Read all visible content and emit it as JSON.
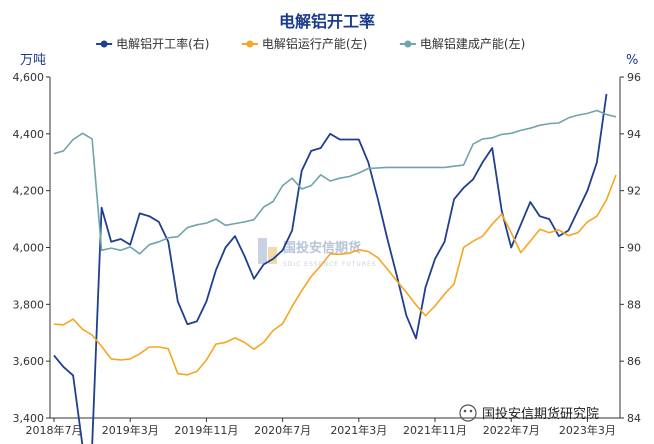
{
  "chart_data": {
    "type": "line",
    "title": "电解铝开工率",
    "left_unit": "万吨",
    "right_unit": "%",
    "categories": [
      "2018年7月",
      "2019年3月",
      "2019年11月",
      "2020年7月",
      "2021年3月",
      "2021年11月",
      "2022年7月",
      "2023年3月"
    ],
    "y_left_range": [
      3400,
      4600
    ],
    "y_left_ticks": [
      "3,400",
      "3,600",
      "3,800",
      "4,000",
      "4,200",
      "4,400",
      "4,600"
    ],
    "y_right_range": [
      84,
      96
    ],
    "y_right_ticks": [
      "84",
      "86",
      "88",
      "90",
      "92",
      "94",
      "96"
    ],
    "x_range": [
      0,
      59
    ],
    "series": [
      {
        "name": "电解铝开工率(右)",
        "axis": "right",
        "color": "#1f3f8f",
        "x": [
          0,
          1,
          2,
          3,
          4,
          5,
          6,
          7,
          8,
          9,
          10,
          11,
          12,
          13,
          14,
          15,
          16,
          17,
          18,
          19,
          20,
          21,
          22,
          23,
          24,
          25,
          26,
          27,
          28,
          29,
          30,
          31,
          32,
          33,
          34,
          35,
          36,
          37,
          38,
          39,
          40,
          41,
          42,
          43,
          44,
          45,
          46,
          47,
          48,
          49,
          50,
          51,
          52,
          53,
          54,
          55,
          56,
          57,
          58,
          59
        ],
        "values": [
          86.2,
          85.8,
          85.5,
          83.0,
          83.0,
          91.4,
          90.2,
          90.3,
          90.1,
          91.2,
          91.1,
          90.9,
          90.2,
          88.1,
          87.3,
          87.4,
          88.1,
          89.2,
          90.0,
          90.4,
          89.7,
          88.9,
          89.4,
          89.6,
          89.9,
          90.6,
          92.7,
          93.4,
          93.5,
          94.0,
          93.8,
          93.8,
          93.8,
          93.0,
          91.7,
          90.3,
          89.0,
          87.6,
          86.8,
          88.6,
          89.6,
          90.2,
          91.7,
          92.1,
          92.4,
          93.0,
          93.5,
          91.3,
          90.0,
          90.8,
          91.6,
          91.1,
          91.0,
          90.4,
          90.6,
          91.3,
          92.0,
          93.0,
          95.4,
          null
        ],
        "width": 1.8
      },
      {
        "name": "电解铝运行产能(左)",
        "axis": "left",
        "color": "#f5a623",
        "x": [
          0,
          1,
          2,
          3,
          4,
          5,
          6,
          7,
          8,
          9,
          10,
          11,
          12,
          13,
          14,
          15,
          16,
          17,
          18,
          19,
          20,
          21,
          22,
          23,
          24,
          25,
          26,
          27,
          28,
          29,
          30,
          31,
          32,
          33,
          34,
          35,
          36,
          37,
          38,
          39,
          40,
          41,
          42,
          43,
          44,
          45,
          46,
          47,
          48,
          49,
          50,
          51,
          52,
          53,
          54,
          55,
          56,
          57,
          58,
          59
        ],
        "values": [
          3730,
          3728,
          3748,
          3712,
          3692,
          3652,
          3608,
          3604,
          3608,
          3626,
          3650,
          3650,
          3644,
          3556,
          3552,
          3564,
          3604,
          3660,
          3666,
          3682,
          3666,
          3642,
          3666,
          3708,
          3732,
          3792,
          3848,
          3898,
          3936,
          3978,
          3976,
          3980,
          3992,
          3986,
          3964,
          3924,
          3882,
          3842,
          3798,
          3760,
          3794,
          3836,
          3872,
          4000,
          4022,
          4040,
          4082,
          4118,
          4052,
          3982,
          4022,
          4064,
          4052,
          4062,
          4042,
          4052,
          4090,
          4110,
          4168,
          4255
        ],
        "width": 1.6
      },
      {
        "name": "电解铝建成产能(左)",
        "axis": "left",
        "color": "#6fa5aa",
        "x": [
          0,
          1,
          2,
          3,
          4,
          5,
          6,
          7,
          8,
          9,
          10,
          11,
          12,
          13,
          14,
          15,
          16,
          17,
          18,
          19,
          20,
          21,
          22,
          23,
          24,
          25,
          26,
          27,
          28,
          29,
          30,
          31,
          32,
          33,
          34,
          35,
          36,
          37,
          38,
          39,
          40,
          41,
          42,
          43,
          44,
          45,
          46,
          47,
          48,
          49,
          50,
          51,
          52,
          53,
          54,
          55,
          56,
          57,
          58,
          59
        ],
        "values": [
          4330,
          4340,
          4380,
          4402,
          4382,
          3990,
          3998,
          3990,
          4002,
          3978,
          4010,
          4020,
          4034,
          4038,
          4070,
          4080,
          4086,
          4100,
          4078,
          4084,
          4090,
          4098,
          4142,
          4162,
          4218,
          4244,
          4206,
          4218,
          4256,
          4234,
          4244,
          4250,
          4262,
          4278,
          4280,
          4282,
          4282,
          4282,
          4282,
          4282,
          4282,
          4282,
          4286,
          4290,
          4364,
          4382,
          4386,
          4398,
          4402,
          4412,
          4420,
          4430,
          4436,
          4438,
          4456,
          4466,
          4472,
          4482,
          4468,
          4460
        ],
        "width": 1.6
      }
    ],
    "legend_position": "top",
    "grid": false
  },
  "watermark": {
    "text": "国投安信期货",
    "sub": "SDIC ESSENCE FUTURES"
  },
  "brand": "国投安信期货研究院"
}
